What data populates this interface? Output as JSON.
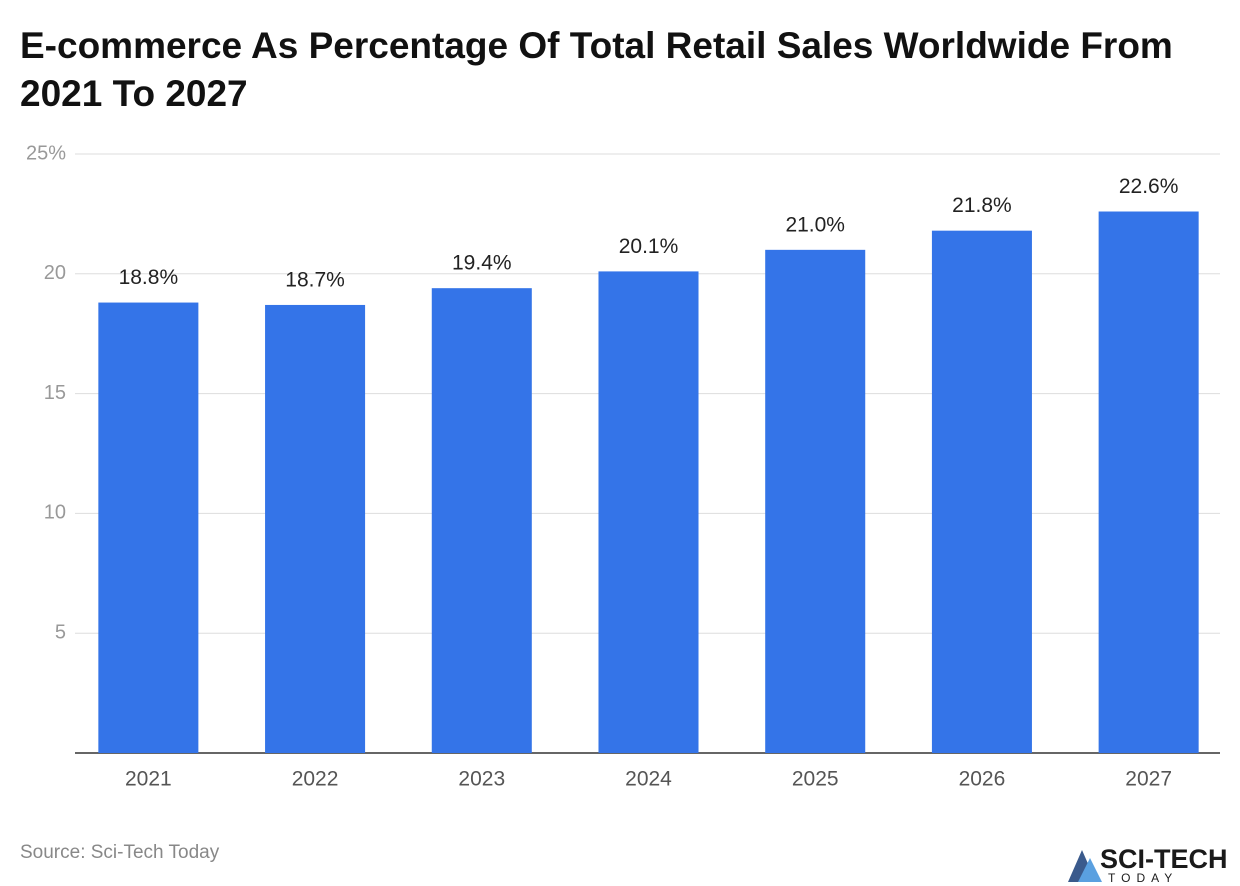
{
  "chart_data": {
    "type": "bar",
    "title": "E-commerce As Percentage Of Total Retail Sales Worldwide From 2021 To 2027",
    "categories": [
      "2021",
      "2022",
      "2023",
      "2024",
      "2025",
      "2026",
      "2027"
    ],
    "values": [
      18.8,
      18.7,
      19.4,
      20.1,
      21.0,
      21.8,
      22.6
    ],
    "value_labels": [
      "18.8%",
      "18.7%",
      "19.4%",
      "20.1%",
      "21.0%",
      "21.8%",
      "22.6%"
    ],
    "color": "#3474e8",
    "ylim": [
      0,
      25
    ],
    "yticks": [
      5,
      10,
      15,
      20,
      {
        "value": 25,
        "label": "25%"
      }
    ],
    "grid": true,
    "source": "Source: Sci-Tech Today"
  },
  "logo": {
    "name": "SCI-TECH",
    "tagline": "TODAY"
  }
}
